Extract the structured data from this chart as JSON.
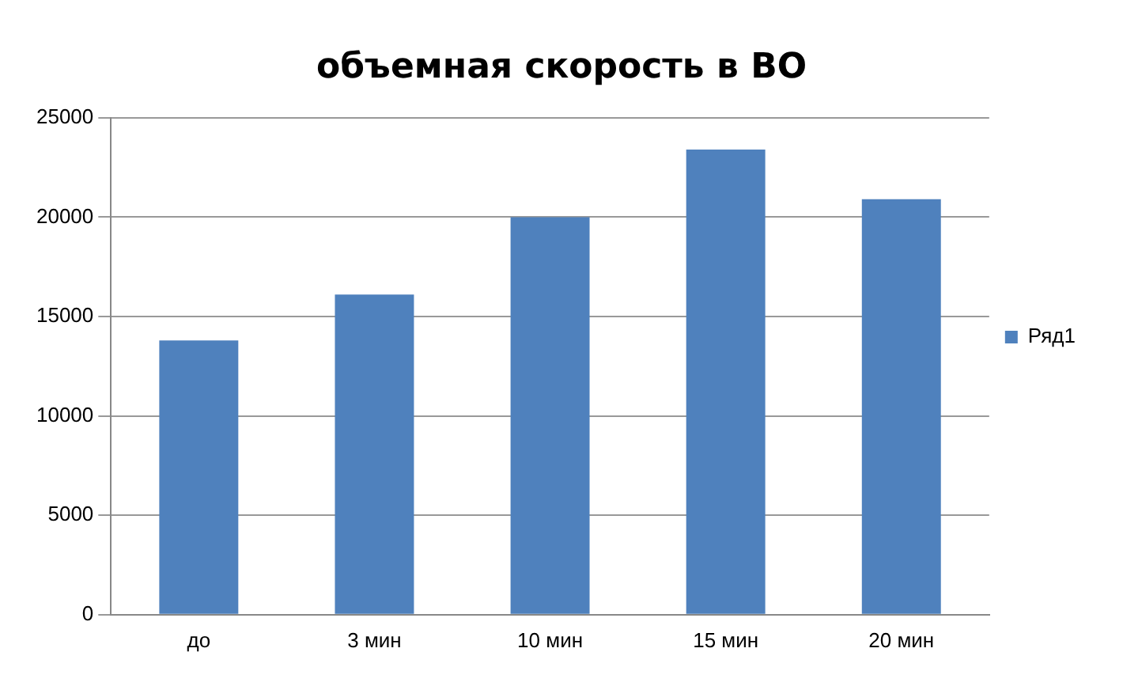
{
  "chart_data": {
    "type": "bar",
    "title": "объемная скорость в ВО",
    "categories": [
      "до",
      "3 мин",
      "10 мин",
      "15 мин",
      "20 мин"
    ],
    "series": [
      {
        "name": "Ряд1",
        "color": "#4f81bd",
        "values": [
          13800,
          16100,
          20000,
          23400,
          20900
        ]
      }
    ],
    "ylim": [
      0,
      25000
    ],
    "yticks": [
      0,
      5000,
      10000,
      15000,
      20000,
      25000
    ],
    "grid": "y",
    "legend": "right"
  }
}
